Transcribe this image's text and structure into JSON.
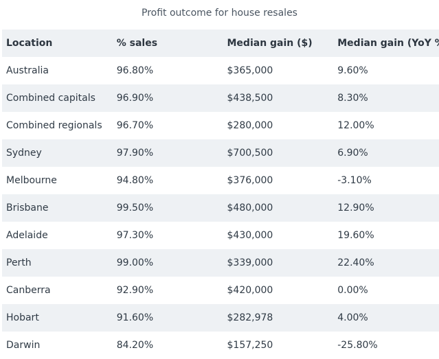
{
  "caption": "Profit outcome for house resales",
  "columns": [
    "Location",
    "% sales",
    "Median gain ($)",
    "Median gain (YoY %)"
  ],
  "rows": [
    {
      "location": "Australia",
      "sales": "96.80%",
      "gain": "$365,000",
      "yoy": "9.60%"
    },
    {
      "location": "Combined capitals",
      "sales": "96.90%",
      "gain": "$438,500",
      "yoy": "8.30%"
    },
    {
      "location": "Combined regionals",
      "sales": "96.70%",
      "gain": "$280,000",
      "yoy": "12.00%"
    },
    {
      "location": "Sydney",
      "sales": "97.90%",
      "gain": "$700,500",
      "yoy": "6.90%"
    },
    {
      "location": "Melbourne",
      "sales": "94.80%",
      "gain": "$376,000",
      "yoy": "-3.10%"
    },
    {
      "location": "Brisbane",
      "sales": "99.50%",
      "gain": "$480,000",
      "yoy": "12.90%"
    },
    {
      "location": "Adelaide",
      "sales": "97.30%",
      "gain": "$430,000",
      "yoy": "19.60%"
    },
    {
      "location": "Perth",
      "sales": "99.00%",
      "gain": "$339,000",
      "yoy": "22.40%"
    },
    {
      "location": "Canberra",
      "sales": "92.90%",
      "gain": "$420,000",
      "yoy": "0.00%"
    },
    {
      "location": "Hobart",
      "sales": "91.60%",
      "gain": "$282,978",
      "yoy": "4.00%"
    },
    {
      "location": "Darwin",
      "sales": "84.20%",
      "gain": "$157,250",
      "yoy": "-25.80%"
    }
  ]
}
